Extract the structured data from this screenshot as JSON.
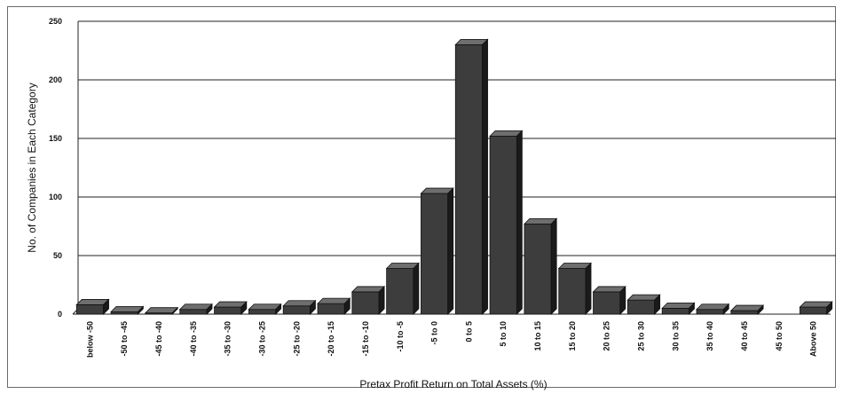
{
  "chart_data": {
    "type": "bar",
    "title": "",
    "xlabel": "Pretax Profit Return on Total Assets (%)",
    "ylabel": "No. of Companies in Each Category",
    "ylim": [
      0,
      250
    ],
    "yticks": [
      "0",
      "50",
      "100",
      "150",
      "200",
      "250"
    ],
    "grid": true,
    "legend": "none",
    "categories": [
      "below -50",
      "-50 to -45",
      "-45 to -40",
      "-40 to -35",
      "-35 to -30",
      "-30 to -25",
      "-25 to -20",
      "-20 to -15",
      "-15 to -10",
      "-10 to -5",
      "-5 to 0",
      "0 to 5",
      "5 to 10",
      "10 to 15",
      "15 to 20",
      "20 to 25",
      "25 to 30",
      "30 to 35",
      "35 to 40",
      "40 to 45",
      "45 to 50",
      "Above 50"
    ],
    "values": [
      8,
      2,
      1,
      4,
      6,
      4,
      7,
      9,
      19,
      39,
      103,
      230,
      152,
      77,
      39,
      19,
      12,
      5,
      4,
      3,
      0,
      6
    ],
    "colors": {
      "bar_front": "#3d3d3d",
      "bar_top": "#6e6e6e",
      "bar_side": "#1a1a1a",
      "gridline": "#222222",
      "axis": "#222222"
    }
  }
}
